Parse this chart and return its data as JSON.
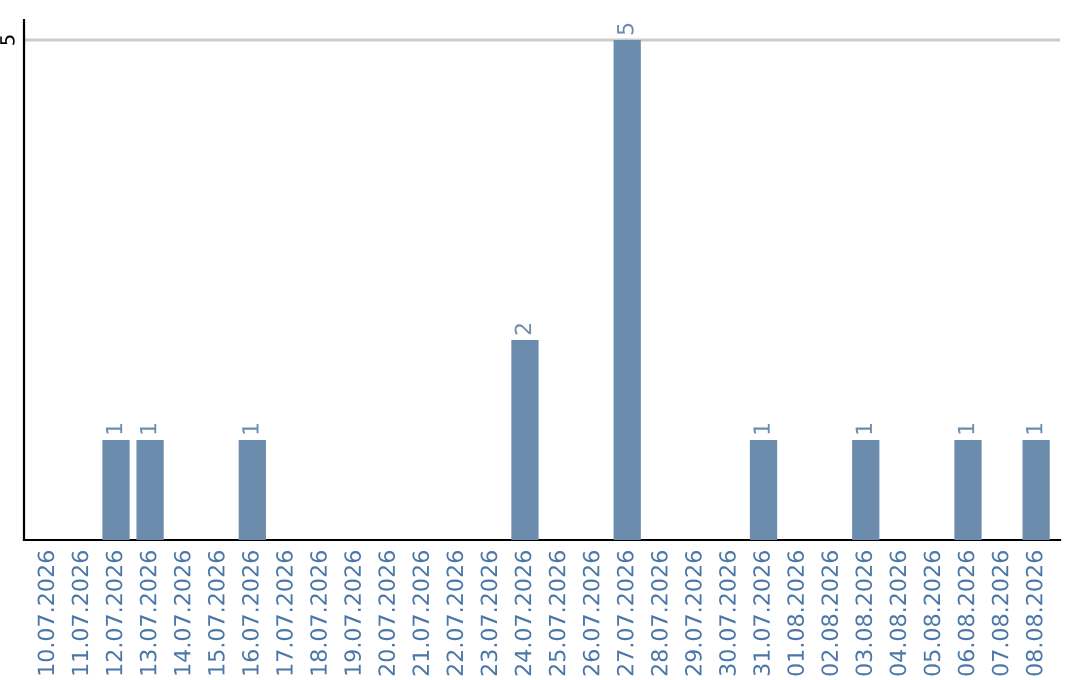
{
  "chart_data": {
    "type": "bar",
    "categories": [
      "10.07.2026",
      "11.07.2026",
      "12.07.2026",
      "13.07.2026",
      "14.07.2026",
      "15.07.2026",
      "16.07.2026",
      "17.07.2026",
      "18.07.2026",
      "19.07.2026",
      "20.07.2026",
      "21.07.2026",
      "22.07.2026",
      "23.07.2026",
      "24.07.2026",
      "25.07.2026",
      "26.07.2026",
      "27.07.2026",
      "28.07.2026",
      "29.07.2026",
      "30.07.2026",
      "31.07.2026",
      "01.08.2026",
      "02.08.2026",
      "03.08.2026",
      "04.08.2026",
      "05.08.2026",
      "06.08.2026",
      "07.08.2026",
      "08.08.2026"
    ],
    "values": [
      0,
      0,
      1,
      1,
      0,
      0,
      1,
      0,
      0,
      0,
      0,
      0,
      0,
      0,
      2,
      0,
      0,
      5,
      0,
      0,
      0,
      1,
      0,
      0,
      1,
      0,
      0,
      1,
      0,
      1
    ],
    "value_labels": [
      null,
      null,
      "1",
      "1",
      null,
      null,
      "1",
      null,
      null,
      null,
      null,
      null,
      null,
      null,
      "2",
      null,
      null,
      "5",
      null,
      null,
      null,
      "1",
      null,
      null,
      "1",
      null,
      null,
      "1",
      null,
      "1"
    ],
    "color": "#6b8cad",
    "ylim": [
      0,
      5.2
    ],
    "yticks": [
      5
    ],
    "grid": "y"
  }
}
